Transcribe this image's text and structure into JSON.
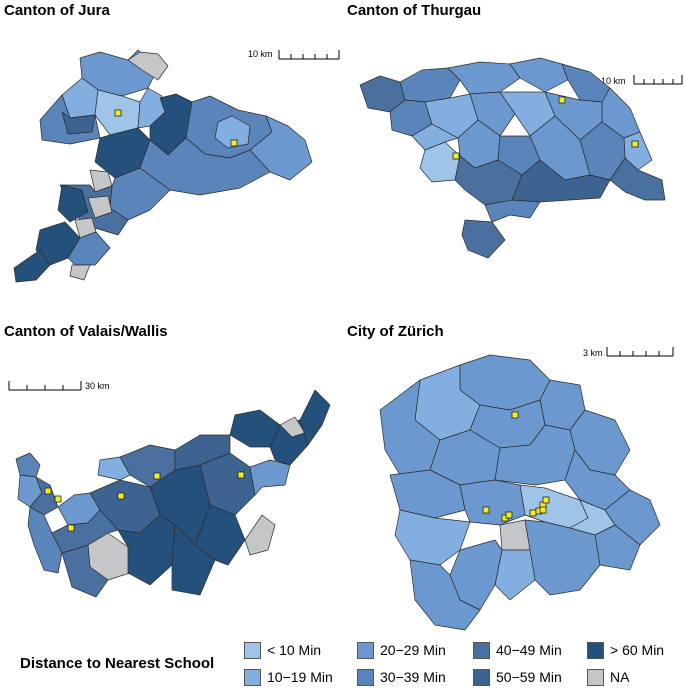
{
  "panels": [
    {
      "title": "Canton of Jura",
      "scale_label": "10 km"
    },
    {
      "title": "Canton of Thurgau",
      "scale_label": "10 km"
    },
    {
      "title": "Canton of Valais/Wallis",
      "scale_label": "30 km"
    },
    {
      "title": "City of Zürich",
      "scale_label": "3 km"
    }
  ],
  "legend": {
    "title": "Distance to Nearest School",
    "items": [
      {
        "label": "< 10 Min",
        "color": "#9ec4e8"
      },
      {
        "label": "10−19 Min",
        "color": "#82afe0"
      },
      {
        "label": "20−29 Min",
        "color": "#6a98cf"
      },
      {
        "label": "30−39 Min",
        "color": "#5985ba"
      },
      {
        "label": "40−49 Min",
        "color": "#4a70a0"
      },
      {
        "label": "50−59 Min",
        "color": "#3d6390"
      },
      {
        "label": "> 60 Min",
        "color": "#24507c"
      },
      {
        "label": "NA",
        "color": "#c4c6c8"
      }
    ]
  },
  "school_marker_color": "#f0ec28",
  "border_color": "#2c2c2c"
}
